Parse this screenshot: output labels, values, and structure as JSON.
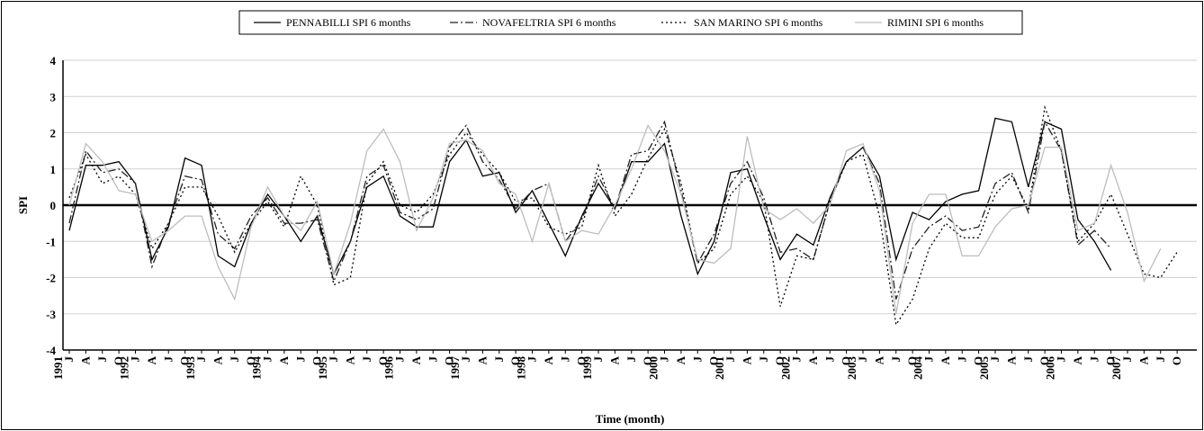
{
  "chart_data": {
    "type": "line",
    "y_label": "SPI",
    "x_label": "Time (month)",
    "years": [
      "1991",
      "1992",
      "1993",
      "1994",
      "1995",
      "1996",
      "1997",
      "1998",
      "1999",
      "2000",
      "2001",
      "2002",
      "2003",
      "2004",
      "2005",
      "2006",
      "2007"
    ],
    "categories": [
      "J",
      "A",
      "J",
      "O",
      "J",
      "A",
      "J",
      "O",
      "J",
      "A",
      "J",
      "O",
      "J",
      "A",
      "J",
      "O",
      "J",
      "A",
      "J",
      "O",
      "J",
      "A",
      "J",
      "O",
      "J",
      "A",
      "J",
      "O",
      "J",
      "A",
      "J",
      "O",
      "J",
      "A",
      "J",
      "O",
      "J",
      "A",
      "J",
      "O",
      "J",
      "A",
      "J",
      "O",
      "J",
      "A",
      "J",
      "O",
      "J",
      "A",
      "J",
      "O",
      "J",
      "A",
      "J",
      "O",
      "J",
      "A",
      "J",
      "O",
      "J",
      "A",
      "J",
      "O",
      "J",
      "A",
      "J",
      "O"
    ],
    "ylim": [
      -4,
      4
    ],
    "yticks": [
      -4,
      -3,
      -2,
      -1,
      0,
      1,
      2,
      3,
      4
    ],
    "grid": true,
    "legend": "top",
    "series": [
      {
        "name": "PENNABILLI SPI 6 months",
        "color": "#000000",
        "dash": "none",
        "values": [
          -0.7,
          1.1,
          1.1,
          1.2,
          0.6,
          -1.5,
          -0.6,
          1.3,
          1.1,
          -1.4,
          -1.7,
          -0.5,
          0.3,
          -0.3,
          -1.0,
          -0.3,
          -1.9,
          -1.0,
          0.5,
          0.8,
          -0.3,
          -0.6,
          -0.6,
          1.2,
          1.8,
          0.8,
          0.9,
          -0.2,
          0.4,
          -0.5,
          -1.4,
          -0.3,
          0.6,
          -0.1,
          1.2,
          1.2,
          1.7,
          -0.3,
          -1.9,
          -1.0,
          0.9,
          1.0,
          -0.3,
          -1.5,
          -0.8,
          -1.1,
          0.2,
          1.2,
          1.6,
          0.8,
          -1.5,
          -0.2,
          -0.4,
          0.1,
          0.3,
          0.4,
          2.4,
          2.3,
          0.5,
          2.3,
          2.1,
          -0.4,
          -1.0,
          -1.8,
          null,
          null,
          null,
          null
        ]
      },
      {
        "name": "NOVAFELTRIA SPI 6 months",
        "color": "#222222",
        "dash": "9,3,2,3",
        "values": [
          -0.5,
          1.5,
          0.9,
          1.0,
          0.6,
          -1.7,
          -0.5,
          0.8,
          0.7,
          -0.8,
          -1.2,
          -0.3,
          0.2,
          -0.5,
          -0.5,
          -0.4,
          -2.1,
          -1.0,
          0.8,
          1.1,
          -0.2,
          -0.4,
          -0.1,
          1.6,
          2.2,
          1.2,
          0.7,
          -0.1,
          0.4,
          0.6,
          -1.0,
          -0.4,
          0.8,
          -0.1,
          1.4,
          1.5,
          2.3,
          0.4,
          -1.6,
          -0.8,
          0.6,
          1.2,
          0.2,
          -1.3,
          -1.2,
          -1.5,
          0.1,
          1.2,
          1.6,
          0.6,
          -2.6,
          -1.2,
          -0.6,
          -0.3,
          -0.7,
          -0.6,
          0.6,
          0.9,
          -0.2,
          2.3,
          1.5,
          -1.1,
          -0.7,
          -1.2,
          null,
          null,
          null,
          null
        ]
      },
      {
        "name": "SAN MARINO SPI 6 months",
        "color": "#000000",
        "dash": "2,3",
        "values": [
          0.2,
          1.4,
          0.6,
          0.8,
          0.3,
          -1.2,
          -0.5,
          0.5,
          0.5,
          -0.3,
          -1.3,
          -0.5,
          0.1,
          -0.6,
          0.8,
          0.0,
          -2.2,
          -2.0,
          0.6,
          1.2,
          0.0,
          -0.2,
          0.3,
          1.4,
          2.0,
          1.4,
          0.9,
          0.1,
          0.2,
          -0.6,
          -0.8,
          -0.6,
          1.1,
          -0.3,
          0.3,
          1.3,
          2.1,
          0.6,
          -1.6,
          -1.2,
          0.3,
          0.8,
          0.1,
          -2.8,
          -1.4,
          -1.5,
          0.1,
          1.2,
          1.4,
          -0.3,
          -3.3,
          -2.6,
          -1.2,
          -0.5,
          -0.9,
          -0.9,
          0.3,
          0.8,
          -0.1,
          2.7,
          1.5,
          -1.0,
          -0.5,
          0.3,
          -0.8,
          -1.9,
          -2.0,
          -1.3
        ]
      },
      {
        "name": "RIMINI SPI 6 months",
        "color": "#bdbdbd",
        "dash": "none",
        "values": [
          0.0,
          1.7,
          1.2,
          0.4,
          0.3,
          -1.0,
          -0.7,
          -0.3,
          -0.3,
          -1.7,
          -2.6,
          -0.6,
          0.5,
          -0.3,
          -0.7,
          0.1,
          -1.9,
          -0.5,
          1.5,
          2.1,
          1.2,
          -0.7,
          0.2,
          1.7,
          1.8,
          1.5,
          0.6,
          0.3,
          -1.0,
          0.6,
          -1.0,
          -0.7,
          -0.8,
          0.0,
          1.0,
          2.2,
          1.5,
          0.3,
          -1.5,
          -1.6,
          -1.2,
          1.9,
          -0.1,
          -0.4,
          -0.1,
          -0.5,
          0.0,
          1.5,
          1.7,
          0.4,
          -3.0,
          -0.5,
          0.3,
          0.3,
          -1.4,
          -1.4,
          -0.6,
          -0.1,
          0.0,
          1.6,
          1.6,
          -0.7,
          -0.5,
          1.1,
          -0.2,
          -2.1,
          -1.2,
          null
        ]
      }
    ]
  }
}
